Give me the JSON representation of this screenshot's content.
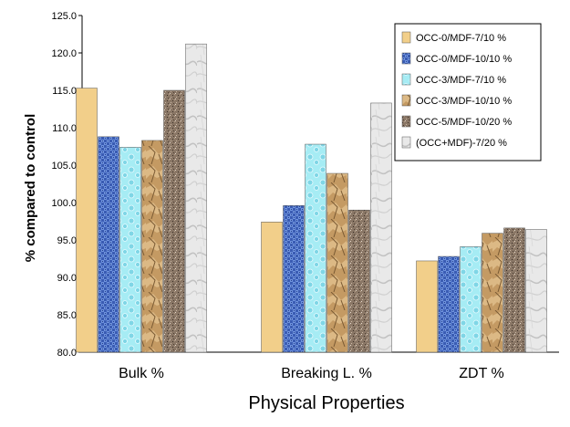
{
  "chart_data": {
    "type": "bar",
    "xlabel": "Physical  Properties",
    "ylabel": "% compared to control",
    "ylim": [
      80,
      125
    ],
    "yticks": [
      "80.0",
      "85.0",
      "90.0",
      "95.0",
      "100.0",
      "105.0",
      "110.0",
      "115.0",
      "120.0",
      "125.0"
    ],
    "categories": [
      "Bulk %",
      "Breaking  L. %",
      "ZDT %"
    ],
    "legend_position": "top-right",
    "grid": false,
    "series": [
      {
        "name": "OCC-0/MDF-7/10 %",
        "values": [
          115.3,
          97.4,
          92.2
        ],
        "color": "#f2cf8a",
        "pattern": "solid"
      },
      {
        "name": "OCC-0/MDF-10/10 %",
        "values": [
          108.8,
          99.6,
          92.8
        ],
        "color": "#4f72c6",
        "pattern": "weave"
      },
      {
        "name": "OCC-3/MDF-7/10 %",
        "values": [
          107.4,
          107.8,
          94.1
        ],
        "color": "#a6ecf4",
        "pattern": "bubbles"
      },
      {
        "name": "OCC-3/MDF-10/10 %",
        "values": [
          108.3,
          103.9,
          95.9
        ],
        "color": "#c9a06a",
        "pattern": "crumple"
      },
      {
        "name": "OCC-5/MDF-10/20 %",
        "values": [
          115.0,
          99.0,
          96.6
        ],
        "color": "#8e7a6b",
        "pattern": "granite"
      },
      {
        "name": "(OCC+MDF)-7/20 %",
        "values": [
          121.2,
          113.3,
          96.4
        ],
        "color": "#e4e4e4",
        "pattern": "marble"
      }
    ]
  }
}
